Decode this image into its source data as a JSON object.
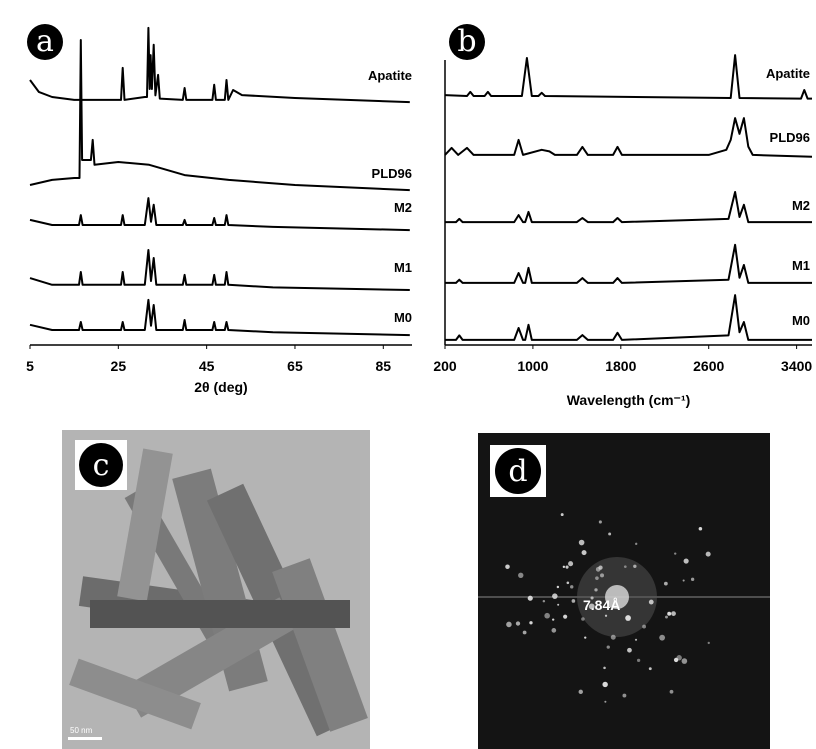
{
  "chart_data": [
    {
      "type": "line",
      "label": "a",
      "xlabel": "2θ (deg)",
      "xlim": [
        5,
        91.5
      ],
      "xticks": [
        5,
        25,
        45,
        65,
        85
      ],
      "ylim": [
        0,
        100
      ],
      "series": [
        {
          "name": "Apatite",
          "color": "#000000",
          "x": [
            5,
            7,
            10,
            15,
            22,
            25.6,
            26,
            26.4,
            31,
            31.5,
            31.8,
            32.1,
            32.3,
            32.6,
            33,
            33.4,
            34,
            34.4,
            39.6,
            40,
            40.4,
            46.3,
            46.7,
            47.1,
            49.1,
            49.5,
            49.9,
            51,
            53,
            65,
            91
          ],
          "values": [
            82.8,
            79.1,
            77.5,
            76.6,
            76.6,
            76.6,
            86.6,
            76.6,
            77.5,
            77.5,
            99.1,
            80,
            90.6,
            80,
            93.8,
            78,
            84.4,
            77,
            76.6,
            80.3,
            76.6,
            76.6,
            81.3,
            76.6,
            76.6,
            82.8,
            76.6,
            79.7,
            78.1,
            77.2,
            75.9
          ]
        },
        {
          "name": "PLD96",
          "color": "#000000",
          "x": [
            5,
            10,
            15,
            16.2,
            16.5,
            16.8,
            18.8,
            19.2,
            19.6,
            25,
            32,
            40,
            50,
            65,
            91
          ],
          "values": [
            50,
            51.6,
            52.2,
            52.2,
            95.3,
            57.8,
            57.8,
            64.1,
            56.3,
            57.2,
            56.3,
            53.1,
            51.6,
            50,
            48.4
          ]
        },
        {
          "name": "M2",
          "color": "#000000",
          "x": [
            5,
            10,
            16.1,
            16.5,
            16.9,
            25.6,
            26,
            26.4,
            31,
            31.8,
            32.4,
            33,
            33.6,
            39.6,
            40,
            40.4,
            46.3,
            46.7,
            47.1,
            49.1,
            49.5,
            49.9,
            60,
            91
          ],
          "values": [
            39.1,
            37.5,
            37.5,
            40.6,
            37.5,
            37.5,
            40.6,
            37.5,
            37.5,
            45.9,
            38.5,
            43.8,
            37.5,
            37.5,
            39.1,
            37.5,
            37.5,
            39.7,
            37.5,
            37.5,
            40.6,
            37.5,
            36.9,
            35.9
          ]
        },
        {
          "name": "M1",
          "color": "#000000",
          "x": [
            5,
            10,
            16.1,
            16.5,
            16.9,
            25.6,
            26,
            26.4,
            31,
            31.8,
            32.4,
            33,
            33.6,
            39.6,
            40,
            40.4,
            46.3,
            46.7,
            47.1,
            49.1,
            49.5,
            49.9,
            60,
            91
          ],
          "values": [
            20.9,
            18.8,
            18.8,
            22.8,
            18.8,
            18.8,
            22.8,
            18.8,
            18.8,
            29.7,
            20,
            27.2,
            18.8,
            18.8,
            21.9,
            18.8,
            18.8,
            21.9,
            18.8,
            18.8,
            22.8,
            18.8,
            18,
            17.2
          ]
        },
        {
          "name": "M0",
          "color": "#000000",
          "x": [
            5,
            10,
            16.1,
            16.5,
            16.9,
            25.6,
            26,
            26.4,
            31,
            31.8,
            32.4,
            33,
            33.6,
            39.6,
            40,
            40.4,
            46.3,
            46.7,
            47.1,
            49.1,
            49.5,
            49.9,
            60,
            91
          ],
          "values": [
            6.3,
            4.7,
            4.7,
            7.2,
            4.7,
            4.7,
            7.2,
            4.7,
            4.7,
            14.1,
            6,
            12.5,
            4.7,
            4.7,
            7.8,
            4.7,
            4.7,
            7.2,
            4.7,
            4.7,
            7.2,
            4.7,
            4,
            3.1
          ]
        }
      ]
    },
    {
      "type": "line",
      "label": "b",
      "xlabel": "Wavelength (cm⁻¹)",
      "xlim": [
        200,
        3540
      ],
      "xticks": [
        200,
        1000,
        1800,
        2600,
        3400
      ],
      "ylim": [
        0,
        100
      ],
      "series": [
        {
          "name": "Apatite",
          "color": "#000000",
          "x": [
            200,
            400,
            430,
            460,
            560,
            590,
            620,
            900,
            945,
            990,
            1050,
            1080,
            1110,
            2800,
            2840,
            2880,
            3440,
            3470,
            3500,
            3540
          ],
          "values": [
            78.1,
            77.8,
            79.1,
            77.8,
            77.8,
            79.1,
            77.8,
            77.8,
            89.7,
            77.8,
            77.8,
            78.8,
            77.8,
            77.2,
            90.6,
            77.2,
            77,
            79.7,
            77,
            77
          ]
        },
        {
          "name": "PLD96",
          "color": "#000000",
          "x": [
            200,
            260,
            320,
            400,
            460,
            830,
            870,
            910,
            1080,
            1150,
            1200,
            1400,
            1450,
            1500,
            1730,
            1770,
            1810,
            2600,
            2760,
            2800,
            2840,
            2880,
            2920,
            2960,
            3000,
            3540
          ],
          "values": [
            59.4,
            61.6,
            59.4,
            61.6,
            59.4,
            59.4,
            64.1,
            59.4,
            61,
            60.5,
            59.4,
            59.4,
            61.9,
            59.4,
            59.4,
            61.9,
            59.4,
            59.4,
            61,
            64.1,
            70.9,
            66,
            70.9,
            62,
            59.4,
            58.8
          ]
        },
        {
          "name": "M2",
          "color": "#000000",
          "x": [
            200,
            300,
            330,
            360,
            830,
            870,
            910,
            930,
            960,
            990,
            1400,
            1450,
            1500,
            1730,
            1770,
            1810,
            2780,
            2840,
            2880,
            2920,
            2960,
            3540
          ],
          "values": [
            38.4,
            38.4,
            39.4,
            38.4,
            38.4,
            40.6,
            38.4,
            38.4,
            41.6,
            38.4,
            38.4,
            39.7,
            38.4,
            38.4,
            39.7,
            38.4,
            39.4,
            47.8,
            40,
            43.8,
            38.4,
            38.4
          ]
        },
        {
          "name": "M1",
          "color": "#000000",
          "x": [
            200,
            300,
            330,
            360,
            830,
            870,
            910,
            930,
            960,
            990,
            1400,
            1450,
            1500,
            1730,
            1770,
            1810,
            2780,
            2840,
            2880,
            2920,
            2960,
            3540
          ],
          "values": [
            19.4,
            19.4,
            20.4,
            19.4,
            19.4,
            22.5,
            19.4,
            19.4,
            24.1,
            19.4,
            19.4,
            20.9,
            19.4,
            19.4,
            20.9,
            19.4,
            20.4,
            31.3,
            21,
            25,
            19.4,
            19.4
          ]
        },
        {
          "name": "M0",
          "color": "#000000",
          "x": [
            200,
            300,
            330,
            360,
            830,
            870,
            910,
            930,
            960,
            990,
            1400,
            1450,
            1500,
            1730,
            1770,
            1810,
            2780,
            2840,
            2880,
            2920,
            2960,
            3540
          ],
          "values": [
            1.6,
            1.6,
            3,
            1.6,
            1.6,
            5.3,
            1.6,
            1.6,
            6.3,
            1.6,
            1.6,
            3.1,
            1.6,
            1.6,
            3.8,
            1.6,
            3,
            15.6,
            4,
            7.2,
            1.6,
            1.6
          ]
        }
      ]
    }
  ],
  "images": [
    {
      "label": "c",
      "scale_bar": "50 nm"
    },
    {
      "label": "d",
      "annotation": "7.84Å"
    }
  ]
}
